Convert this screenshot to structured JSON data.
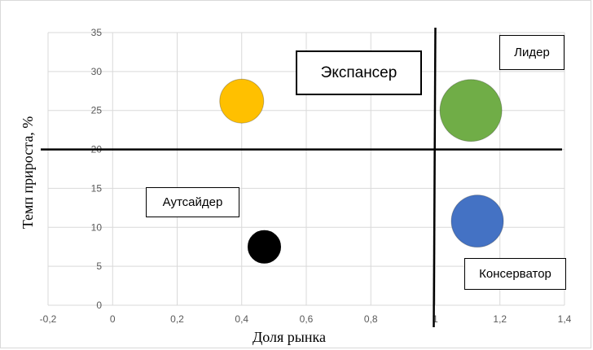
{
  "chart_data": {
    "type": "scatter",
    "xlabel": "Доля рынка",
    "ylabel": "Темп прироста, %",
    "xlim": [
      -0.2,
      1.4
    ],
    "ylim": [
      0,
      35
    ],
    "x_ticks": [
      "-0,2",
      "0",
      "0,2",
      "0,4",
      "0,6",
      "0,8",
      "1",
      "1,2",
      "1,4"
    ],
    "y_ticks": [
      "0",
      "5",
      "10",
      "15",
      "20",
      "25",
      "30",
      "35"
    ],
    "grid": "vertical-and-horizontal",
    "divider_lines": {
      "x": 1.0,
      "y": 20
    },
    "points": [
      {
        "x": 0.4,
        "y": 26.2,
        "color": "#ffc000"
      },
      {
        "x": 1.11,
        "y": 25.0,
        "color": "#70ad47"
      },
      {
        "x": 1.13,
        "y": 10.8,
        "color": "#4472c4"
      },
      {
        "x": 0.47,
        "y": 7.5,
        "color": "#000000"
      }
    ],
    "quadrant_labels": {
      "leader": "Лидер",
      "expander": "Экспансер",
      "outsider": "Аутсайдер",
      "conservator": "Консерватор"
    }
  }
}
